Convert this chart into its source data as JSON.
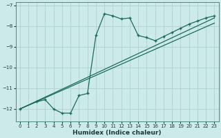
{
  "xlabel": "Humidex (Indice chaleur)",
  "background_color": "#cdeaea",
  "grid_color": "#b0d0d0",
  "line_color": "#1a6b5a",
  "xlim": [
    -0.5,
    23.5
  ],
  "ylim": [
    -12.6,
    -6.85
  ],
  "xticks": [
    0,
    1,
    2,
    3,
    4,
    5,
    6,
    7,
    8,
    9,
    10,
    11,
    12,
    13,
    14,
    15,
    16,
    17,
    18,
    19,
    20,
    21,
    22,
    23
  ],
  "yticks": [
    -12,
    -11,
    -10,
    -9,
    -8,
    -7
  ],
  "line1_x": [
    0,
    23
  ],
  "line1_y": [
    -12.0,
    -7.6
  ],
  "line2_x": [
    0,
    23
  ],
  "line2_y": [
    -12.0,
    -7.85
  ],
  "zigzag_x": [
    0,
    2,
    3,
    4,
    5,
    6,
    7,
    8,
    9,
    10,
    11,
    12,
    13,
    14,
    15,
    16,
    17,
    18,
    19,
    20,
    21,
    22,
    23
  ],
  "zigzag_y": [
    -12.0,
    -11.65,
    -11.55,
    -12.0,
    -12.2,
    -12.2,
    -11.35,
    -11.25,
    -8.45,
    -7.4,
    -7.5,
    -7.65,
    -7.6,
    -8.45,
    -8.55,
    -8.7,
    -8.5,
    -8.3,
    -8.1,
    -7.9,
    -7.75,
    -7.6,
    -7.5
  ],
  "marker": "+",
  "markersize": 3.5,
  "linewidth": 0.9
}
